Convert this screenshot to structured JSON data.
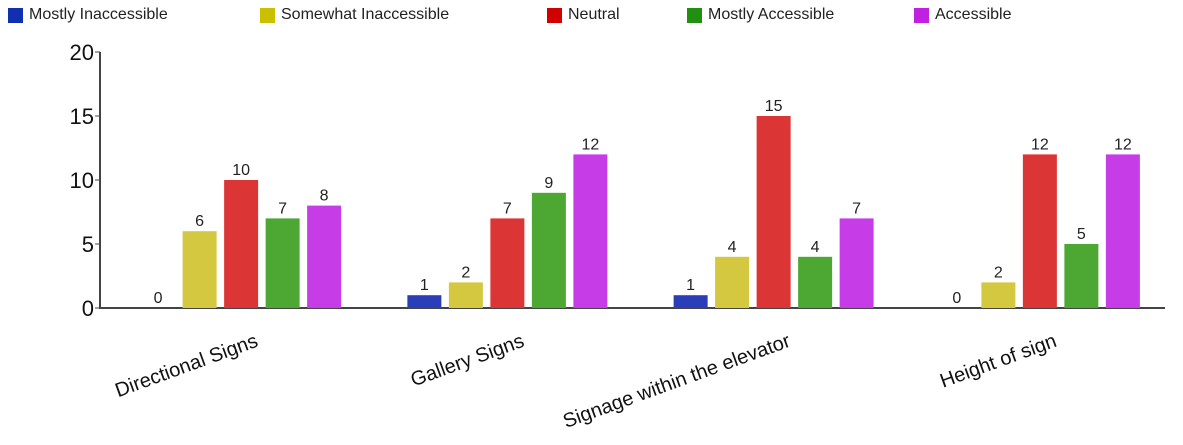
{
  "chart_data": {
    "type": "bar",
    "title": "",
    "xlabel": "",
    "ylabel": "",
    "ylim": [
      0,
      20
    ],
    "yticks": [
      "0",
      "5",
      "10",
      "15",
      "20"
    ],
    "categories": [
      "Directional Signs",
      "Gallery Signs",
      "Signage within the elevator",
      "Height of sign"
    ],
    "series": [
      {
        "name": "Mostly Inaccessible",
        "color": "#2a3eb8",
        "legend_color": "#1030b0",
        "values": [
          0,
          1,
          1,
          0
        ]
      },
      {
        "name": "Somewhat Inaccessible",
        "color": "#d4c840",
        "legend_color": "#c8c000",
        "values": [
          6,
          2,
          4,
          2
        ]
      },
      {
        "name": "Neutral",
        "color": "#dc3535",
        "legend_color": "#d00000",
        "values": [
          10,
          7,
          15,
          12
        ]
      },
      {
        "name": "Mostly Accessible",
        "color": "#4ca832",
        "legend_color": "#209010",
        "values": [
          7,
          9,
          4,
          5
        ]
      },
      {
        "name": "Accessible",
        "color": "#c63de8",
        "legend_color": "#c020e0",
        "values": [
          8,
          12,
          7,
          12
        ]
      }
    ],
    "legend_position": "top-left",
    "grid": false
  }
}
